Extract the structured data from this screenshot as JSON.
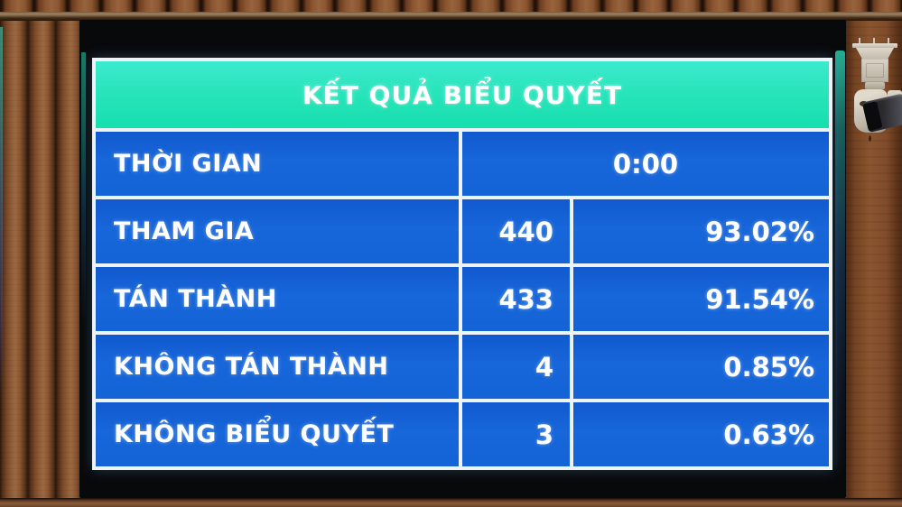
{
  "board": {
    "title": "KẾT QUẢ BIỂU QUYẾT",
    "rows": [
      {
        "label": "THỜI GIAN",
        "value": "0:00"
      },
      {
        "label": "THAM GIA",
        "count": "440",
        "percent": "93.02%"
      },
      {
        "label": "TÁN THÀNH",
        "count": "433",
        "percent": "91.54%"
      },
      {
        "label": "KHÔNG TÁN THÀNH",
        "count": "4",
        "percent": "0.85%"
      },
      {
        "label": "KHÔNG BIỂU QUYẾT",
        "count": "3",
        "percent": "0.63%"
      }
    ],
    "colors": {
      "header_bg": "#25e3b8",
      "cell_bg": "#1464d6",
      "grid": "#eef3f7",
      "text": "#ffffff"
    }
  },
  "scene": {
    "camera_icon": "security-camera"
  }
}
